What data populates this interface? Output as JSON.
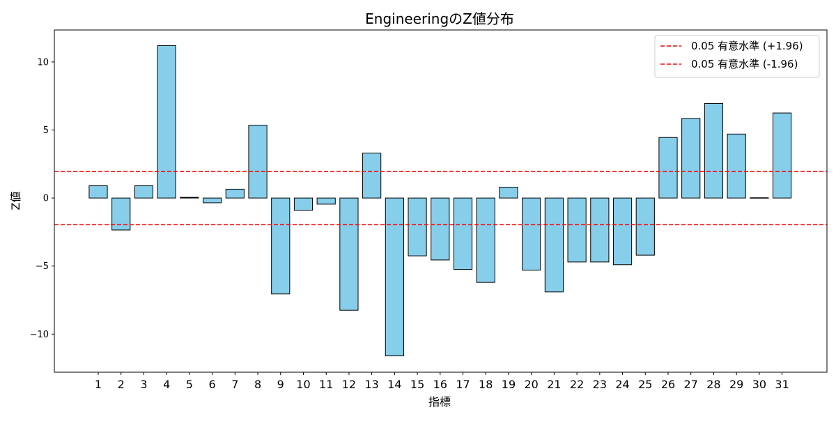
{
  "chart_data": {
    "type": "bar",
    "title": "EngineeringのZ値分布",
    "xlabel": "指標",
    "ylabel": "Z値",
    "categories": [
      "1",
      "2",
      "3",
      "4",
      "5",
      "6",
      "7",
      "8",
      "9",
      "10",
      "11",
      "12",
      "13",
      "14",
      "15",
      "16",
      "17",
      "18",
      "19",
      "20",
      "21",
      "22",
      "23",
      "24",
      "25",
      "26",
      "27",
      "28",
      "29",
      "30",
      "31"
    ],
    "values": [
      0.9,
      -2.35,
      0.9,
      11.2,
      0.05,
      -0.35,
      0.65,
      5.35,
      -7.05,
      -0.9,
      -0.45,
      -8.25,
      3.3,
      -11.6,
      -4.25,
      -4.55,
      -5.25,
      -6.2,
      0.8,
      -5.3,
      -6.9,
      -4.7,
      -4.7,
      -4.9,
      -4.2,
      4.45,
      5.85,
      6.95,
      4.7,
      0.02,
      6.25
    ],
    "ylim": [
      -12.8,
      12.35
    ],
    "yticks": [
      {
        "value": 10,
        "label": "10"
      },
      {
        "value": 5,
        "label": "5"
      },
      {
        "value": 0,
        "label": "0"
      },
      {
        "value": -5,
        "label": "−5"
      },
      {
        "value": -10,
        "label": "−10"
      }
    ],
    "bar_color": "#87ceeb",
    "bar_edge_color": "#000000",
    "reference_lines": [
      {
        "value": 1.96,
        "label": "0.05 有意水準 (+1.96)",
        "color": "#ff0000",
        "style": "dashed"
      },
      {
        "value": -1.96,
        "label": "0.05 有意水準 (-1.96)",
        "color": "#ff0000",
        "style": "dashed"
      }
    ],
    "legend_position": "top-right",
    "grid": false
  }
}
